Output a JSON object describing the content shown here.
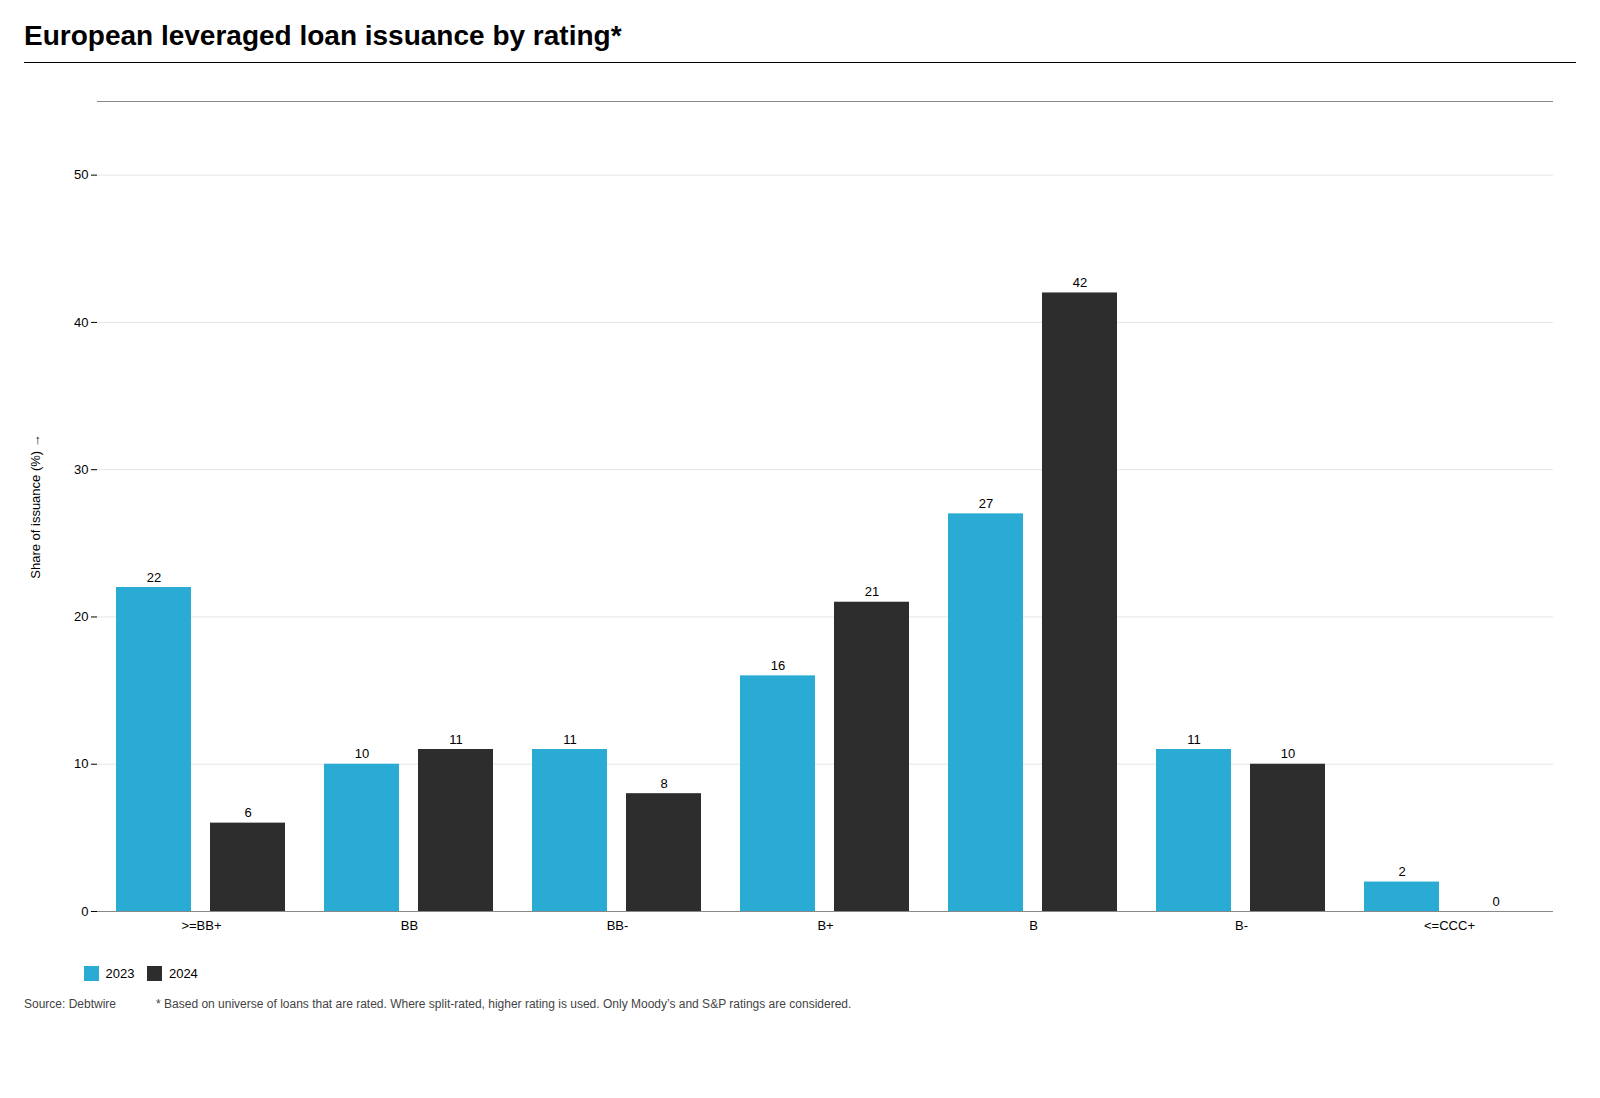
{
  "chart_data": {
    "type": "bar",
    "title": "European leveraged loan issuance by rating*",
    "categories": [
      ">=BB+",
      "BB",
      "BB-",
      "B+",
      "B",
      "B-",
      "<=CCC+"
    ],
    "series": [
      {
        "name": "2023",
        "color": "#29ABD4",
        "values": [
          22,
          10,
          11,
          16,
          27,
          11,
          2
        ]
      },
      {
        "name": "2024",
        "color": "#2D2D2D",
        "values": [
          6,
          11,
          8,
          21,
          42,
          10,
          0
        ]
      }
    ],
    "ylabel": "Share of issuance (%)",
    "ylim": [
      0,
      55
    ],
    "yticks": [
      0,
      10,
      20,
      30,
      40,
      50
    ],
    "grid": true,
    "legend": "lower left",
    "data_labels": true,
    "annotations": [
      "Source: Debtwire",
      "* Based on universe of loans that are rated. Where split-rated, higher rating is used. Only Moody’s and S&P ratings are considered."
    ]
  }
}
